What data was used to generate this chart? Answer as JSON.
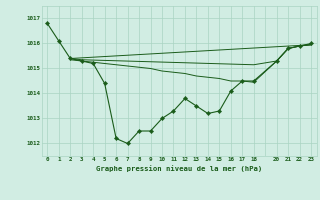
{
  "title": "Graphe pression niveau de la mer (hPa)",
  "bg_color": "#d1ede3",
  "grid_color": "#aad4c2",
  "line_color": "#1a5c1a",
  "marker_color": "#1a5c1a",
  "xlim": [
    -0.5,
    23.5
  ],
  "ylim": [
    1011.5,
    1017.5
  ],
  "yticks": [
    1012,
    1013,
    1014,
    1015,
    1016,
    1017
  ],
  "xticks": [
    0,
    1,
    2,
    3,
    4,
    5,
    6,
    7,
    8,
    9,
    10,
    11,
    12,
    13,
    14,
    15,
    16,
    17,
    18,
    20,
    21,
    22,
    23
  ],
  "series": [
    {
      "x": [
        0,
        1,
        2,
        3,
        4,
        5,
        6,
        7,
        8,
        9,
        10,
        11,
        12,
        13,
        14,
        15,
        16,
        17,
        18,
        20,
        21,
        22,
        23
      ],
      "y": [
        1016.8,
        1016.1,
        1015.4,
        1015.3,
        1015.2,
        1014.4,
        1012.2,
        1012.0,
        1012.5,
        1012.5,
        1013.0,
        1013.3,
        1013.8,
        1013.5,
        1013.2,
        1013.3,
        1014.1,
        1014.5,
        1014.5,
        1015.3,
        1015.8,
        1015.9,
        1016.0
      ],
      "has_markers": true
    },
    {
      "x": [
        2,
        23
      ],
      "y": [
        1015.4,
        1015.95
      ],
      "has_markers": false
    },
    {
      "x": [
        2,
        3,
        18,
        20,
        21,
        22,
        23
      ],
      "y": [
        1015.4,
        1015.35,
        1015.15,
        1015.3,
        1015.8,
        1015.9,
        1015.95
      ],
      "has_markers": false
    },
    {
      "x": [
        2,
        3,
        4,
        5,
        6,
        7,
        8,
        9,
        10,
        11,
        12,
        13,
        14,
        15,
        16,
        17,
        18,
        20,
        21,
        22,
        23
      ],
      "y": [
        1015.35,
        1015.3,
        1015.25,
        1015.2,
        1015.15,
        1015.1,
        1015.05,
        1015.0,
        1014.9,
        1014.85,
        1014.8,
        1014.7,
        1014.65,
        1014.6,
        1014.5,
        1014.5,
        1014.45,
        1015.3,
        1015.8,
        1015.9,
        1015.95
      ],
      "has_markers": false
    }
  ]
}
